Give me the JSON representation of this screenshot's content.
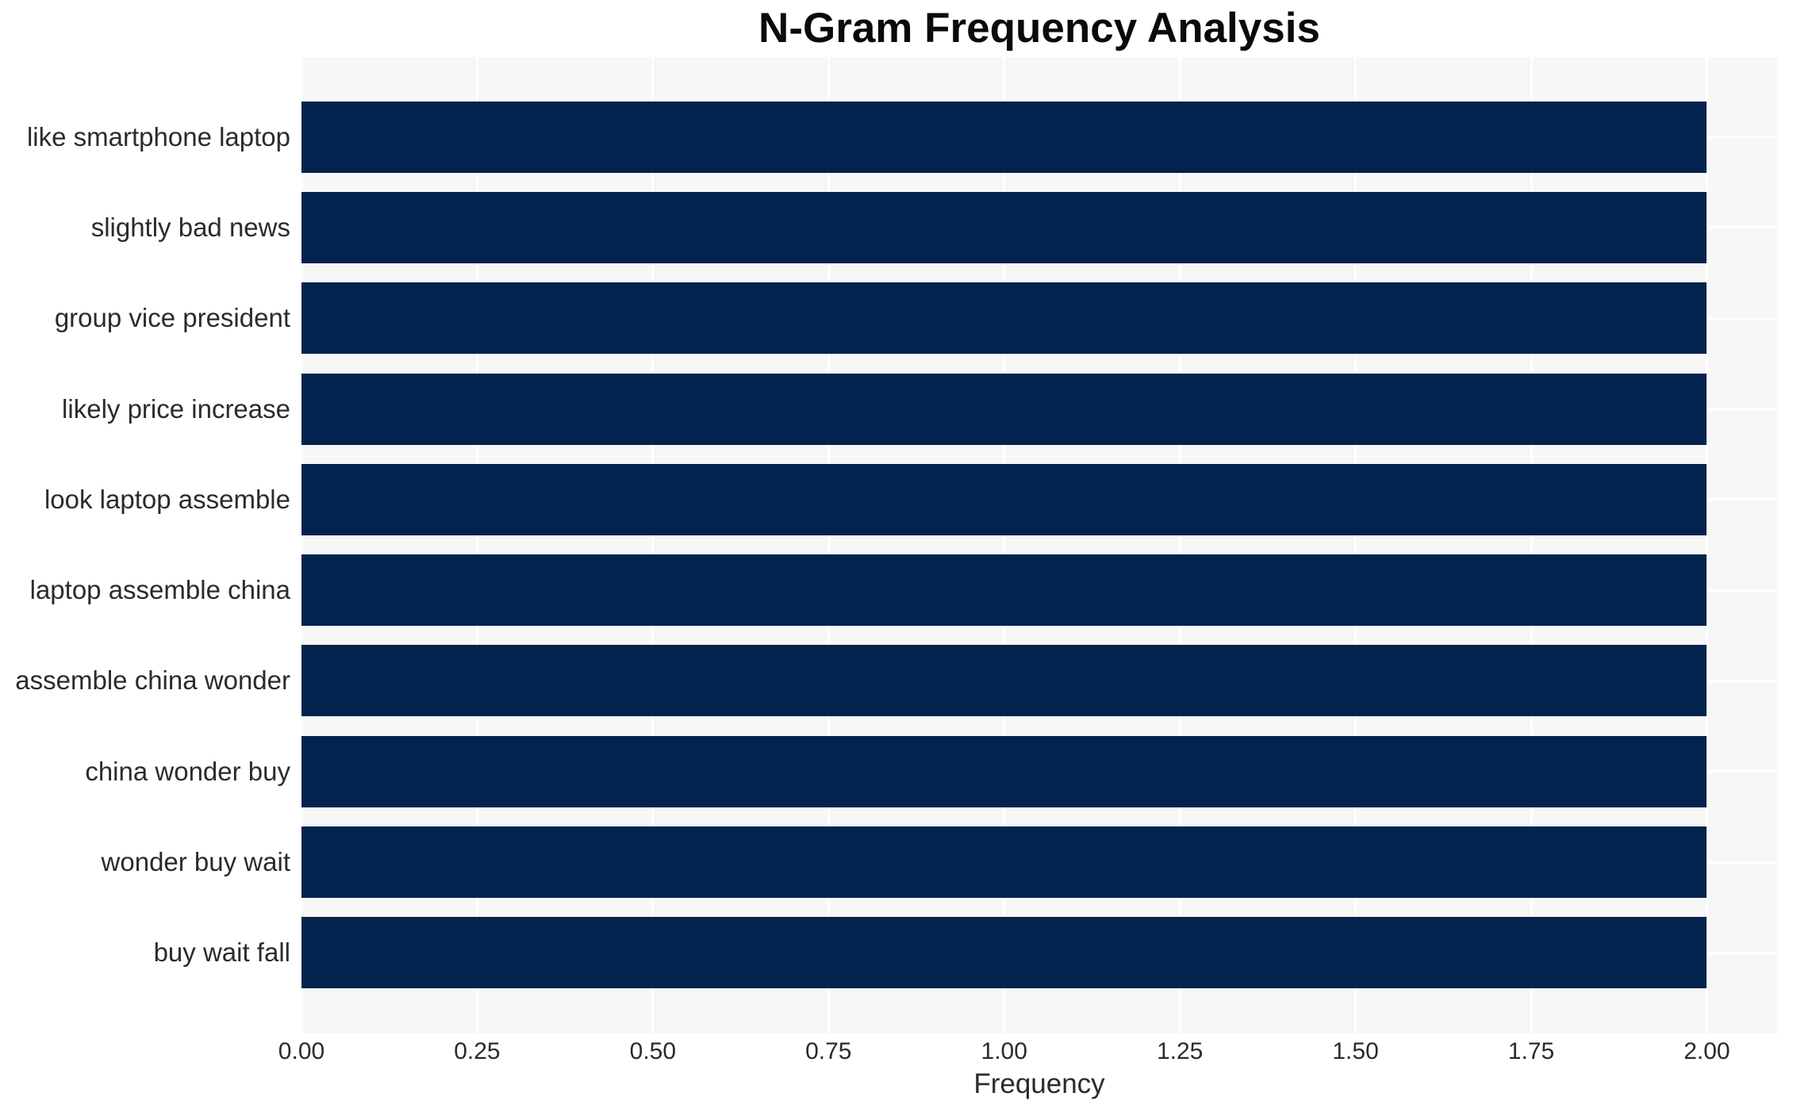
{
  "chart_data": {
    "type": "bar",
    "orientation": "horizontal",
    "title": "N-Gram Frequency Analysis",
    "xlabel": "Frequency",
    "ylabel": "",
    "categories": [
      "like smartphone laptop",
      "slightly bad news",
      "group vice president",
      "likely price increase",
      "look laptop assemble",
      "laptop assemble china",
      "assemble china wonder",
      "china wonder buy",
      "wonder buy wait",
      "buy wait fall"
    ],
    "values": [
      2.0,
      2.0,
      2.0,
      2.0,
      2.0,
      2.0,
      2.0,
      2.0,
      2.0,
      2.0
    ],
    "xlim": [
      0,
      2.1
    ],
    "xticks": [
      0.0,
      0.25,
      0.5,
      0.75,
      1.0,
      1.25,
      1.5,
      1.75,
      2.0
    ],
    "xtick_labels": [
      "0.00",
      "0.25",
      "0.50",
      "0.75",
      "1.00",
      "1.25",
      "1.50",
      "1.75",
      "2.00"
    ],
    "grid": true,
    "legend": false,
    "colors": {
      "bar": "#02234d",
      "plot_background": "#f7f7f7",
      "figure_background": "#ffffff",
      "gridline": "#ffffff",
      "tick_text": "#2b2b2b",
      "title_text": "#0a0a0a"
    }
  }
}
